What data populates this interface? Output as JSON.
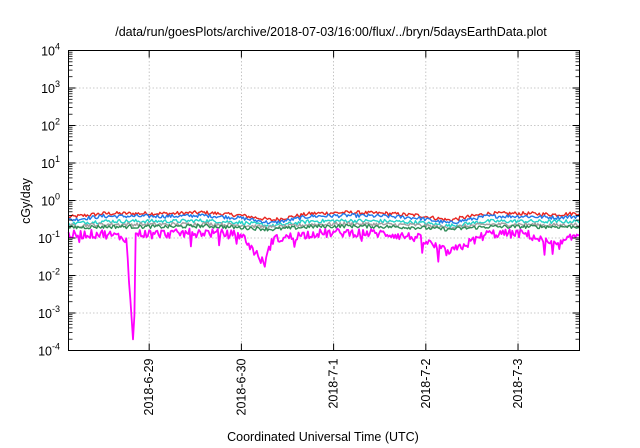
{
  "chart_data": {
    "type": "line",
    "title": "/data/run/goesPlots/archive/2018-07-03/16:00/flux/../bryn/5daysEarthData.plot",
    "xlabel": "Coordinated Universal Time (UTC)",
    "ylabel": "cGy/day",
    "yscale": "log",
    "ylim": [
      0.0001,
      10000
    ],
    "y_ticks": [
      {
        "base": "10",
        "exp": "-4"
      },
      {
        "base": "10",
        "exp": "-3"
      },
      {
        "base": "10",
        "exp": "-2"
      },
      {
        "base": "10",
        "exp": "-1"
      },
      {
        "base": "10",
        "exp": "0"
      },
      {
        "base": "10",
        "exp": "1"
      },
      {
        "base": "10",
        "exp": "2"
      },
      {
        "base": "10",
        "exp": "3"
      },
      {
        "base": "10",
        "exp": "4"
      }
    ],
    "xlim": [
      "2018-06-28 03:00",
      "2018-07-03 16:00"
    ],
    "x_ticks": [
      "2018-6-29",
      "2018-6-30",
      "2018-7-1",
      "2018-7-2",
      "2018-7-3"
    ],
    "grid": true,
    "legend": "none",
    "series_colors": [
      "#e8251f",
      "#1f78e8",
      "#22d3c8",
      "#a0a0a0",
      "#2e8b57",
      "#ff00ff"
    ],
    "series": [
      {
        "color": "#e8251f",
        "x": [
          "2018-06-28 03:00",
          "2018-06-28 12:00",
          "2018-06-28 20:00",
          "2018-06-29 06:00",
          "2018-06-29 14:00",
          "2018-06-30 00:00",
          "2018-06-30 08:00",
          "2018-06-30 18:00",
          "2018-07-01 04:00",
          "2018-07-01 14:00",
          "2018-07-01 22:00",
          "2018-07-02 06:00",
          "2018-07-02 16:00",
          "2018-07-03 02:00",
          "2018-07-03 10:00",
          "2018-07-03 16:00"
        ],
        "values": [
          0.36,
          0.45,
          0.45,
          0.45,
          0.48,
          0.4,
          0.3,
          0.45,
          0.48,
          0.45,
          0.4,
          0.3,
          0.45,
          0.45,
          0.42,
          0.46
        ]
      },
      {
        "color": "#1f78e8",
        "x": [
          "2018-06-28 03:00",
          "2018-06-28 12:00",
          "2018-06-28 20:00",
          "2018-06-29 06:00",
          "2018-06-29 14:00",
          "2018-06-30 00:00",
          "2018-06-30 08:00",
          "2018-06-30 18:00",
          "2018-07-01 04:00",
          "2018-07-01 14:00",
          "2018-07-01 22:00",
          "2018-07-02 06:00",
          "2018-07-02 16:00",
          "2018-07-03 02:00",
          "2018-07-03 10:00",
          "2018-07-03 16:00"
        ],
        "values": [
          0.3,
          0.38,
          0.38,
          0.38,
          0.4,
          0.34,
          0.25,
          0.38,
          0.4,
          0.38,
          0.34,
          0.25,
          0.38,
          0.38,
          0.35,
          0.38
        ]
      },
      {
        "color": "#22d3c8",
        "x": [
          "2018-06-28 03:00",
          "2018-06-28 12:00",
          "2018-06-28 20:00",
          "2018-06-29 06:00",
          "2018-06-29 14:00",
          "2018-06-30 00:00",
          "2018-06-30 08:00",
          "2018-06-30 18:00",
          "2018-07-01 04:00",
          "2018-07-01 14:00",
          "2018-07-01 22:00",
          "2018-07-02 06:00",
          "2018-07-02 16:00",
          "2018-07-03 02:00",
          "2018-07-03 10:00",
          "2018-07-03 16:00"
        ],
        "values": [
          0.24,
          0.28,
          0.28,
          0.28,
          0.29,
          0.26,
          0.21,
          0.28,
          0.29,
          0.28,
          0.26,
          0.21,
          0.28,
          0.28,
          0.27,
          0.28
        ]
      },
      {
        "color": "#a0a0a0",
        "x": [
          "2018-06-28 03:00",
          "2018-06-28 12:00",
          "2018-06-28 20:00",
          "2018-06-29 06:00",
          "2018-06-29 14:00",
          "2018-06-30 00:00",
          "2018-06-30 08:00",
          "2018-06-30 18:00",
          "2018-07-01 04:00",
          "2018-07-01 14:00",
          "2018-07-01 22:00",
          "2018-07-02 06:00",
          "2018-07-02 16:00",
          "2018-07-03 02:00",
          "2018-07-03 10:00",
          "2018-07-03 16:00"
        ],
        "values": [
          0.21,
          0.23,
          0.23,
          0.23,
          0.24,
          0.22,
          0.19,
          0.23,
          0.24,
          0.23,
          0.22,
          0.19,
          0.23,
          0.23,
          0.22,
          0.23
        ]
      },
      {
        "color": "#2e8b57",
        "x": [
          "2018-06-28 03:00",
          "2018-06-28 12:00",
          "2018-06-28 20:00",
          "2018-06-29 06:00",
          "2018-06-29 14:00",
          "2018-06-30 00:00",
          "2018-06-30 08:00",
          "2018-06-30 18:00",
          "2018-07-01 04:00",
          "2018-07-01 14:00",
          "2018-07-01 22:00",
          "2018-07-02 06:00",
          "2018-07-02 16:00",
          "2018-07-03 02:00",
          "2018-07-03 10:00",
          "2018-07-03 16:00"
        ],
        "values": [
          0.19,
          0.2,
          0.2,
          0.2,
          0.21,
          0.19,
          0.17,
          0.2,
          0.21,
          0.2,
          0.19,
          0.17,
          0.2,
          0.2,
          0.2,
          0.2
        ]
      },
      {
        "color": "#ff00ff",
        "x": [
          "2018-06-28 03:00",
          "2018-06-28 12:00",
          "2018-06-28 18:00",
          "2018-06-28 20:00",
          "2018-06-28 20:30",
          "2018-06-29 06:00",
          "2018-06-29 14:00",
          "2018-06-30 00:00",
          "2018-06-30 06:00",
          "2018-06-30 08:00",
          "2018-06-30 18:00",
          "2018-07-01 04:00",
          "2018-07-01 14:00",
          "2018-07-01 22:00",
          "2018-07-02 06:00",
          "2018-07-02 16:00",
          "2018-07-03 02:00",
          "2018-07-03 10:00",
          "2018-07-03 16:00"
        ],
        "values": [
          0.12,
          0.13,
          0.1,
          0.0001,
          0.13,
          0.13,
          0.14,
          0.12,
          0.02,
          0.09,
          0.13,
          0.14,
          0.13,
          0.1,
          0.04,
          0.13,
          0.13,
          0.06,
          0.13
        ]
      }
    ]
  }
}
